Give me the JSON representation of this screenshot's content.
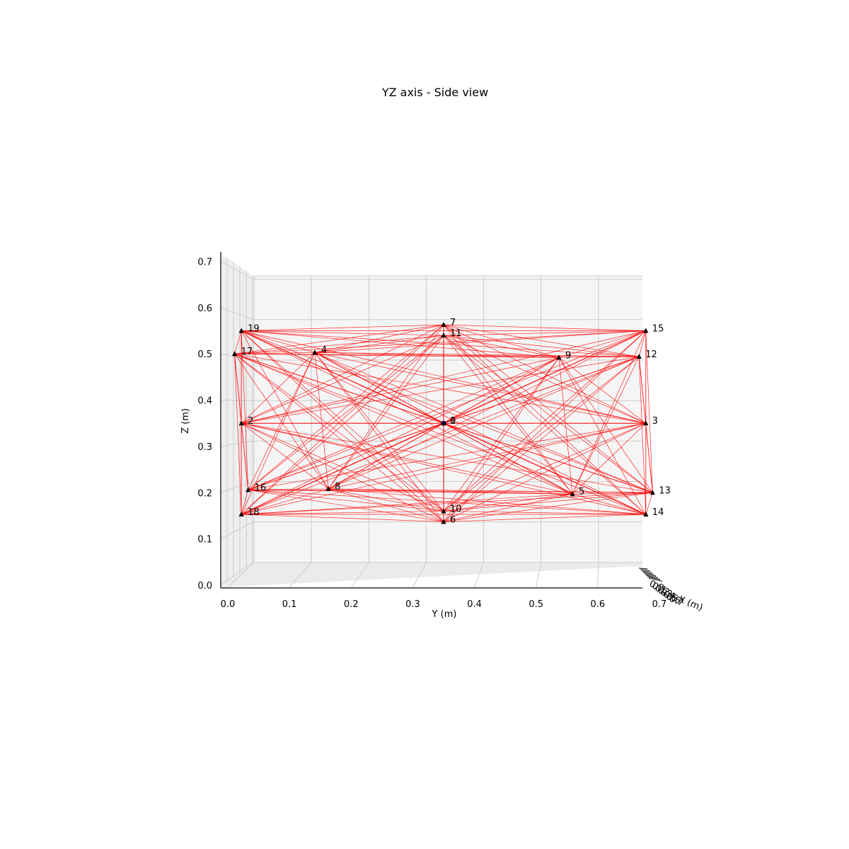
{
  "chart_data": {
    "type": "scatter",
    "title": "YZ axis - Side view",
    "xlabel": "Y (m)",
    "ylabel": "Z (m)",
    "depth_axis_clipped_text": "X (m)",
    "xlim": [
      0.0,
      0.7
    ],
    "ylim": [
      0.0,
      0.7
    ],
    "x_ticks": [
      "0.0",
      "0.1",
      "0.2",
      "0.3",
      "0.4",
      "0.5",
      "0.6",
      "0.7"
    ],
    "y_ticks": [
      "0.0",
      "0.1",
      "0.2",
      "0.3",
      "0.4",
      "0.5",
      "0.6",
      "0.7"
    ],
    "depth_tick_labels": [
      "0.0",
      "0.1",
      "0.2",
      "0.3",
      "0.4",
      "0.5",
      "0.6",
      "0.7"
    ],
    "grid": true,
    "colors": {
      "edges": "#ff0000",
      "markers": "#000000",
      "pane": "#f5f5f5",
      "grid": "#cccccc"
    },
    "center_node": {
      "label": "0",
      "y": 0.35,
      "z": 0.35
    },
    "nodes": [
      {
        "label": "1",
        "y": 0.35,
        "z": 0.35
      },
      {
        "label": "2",
        "y": 0.022,
        "z": 0.35
      },
      {
        "label": "3",
        "y": 0.678,
        "z": 0.35
      },
      {
        "label": "4",
        "y": 0.141,
        "z": 0.503
      },
      {
        "label": "5",
        "y": 0.559,
        "z": 0.197
      },
      {
        "label": "6",
        "y": 0.35,
        "z": 0.137
      },
      {
        "label": "7",
        "y": 0.35,
        "z": 0.563
      },
      {
        "label": "8",
        "y": 0.163,
        "z": 0.208
      },
      {
        "label": "9",
        "y": 0.537,
        "z": 0.492
      },
      {
        "label": "10",
        "y": 0.35,
        "z": 0.16
      },
      {
        "label": "11",
        "y": 0.35,
        "z": 0.54
      },
      {
        "label": "12",
        "y": 0.667,
        "z": 0.494
      },
      {
        "label": "13",
        "y": 0.689,
        "z": 0.2
      },
      {
        "label": "14",
        "y": 0.678,
        "z": 0.153
      },
      {
        "label": "15",
        "y": 0.678,
        "z": 0.55
      },
      {
        "label": "16",
        "y": 0.033,
        "z": 0.206
      },
      {
        "label": "17",
        "y": 0.011,
        "z": 0.5
      },
      {
        "label": "18",
        "y": 0.022,
        "z": 0.153
      },
      {
        "label": "19",
        "y": 0.022,
        "z": 0.55
      }
    ]
  }
}
